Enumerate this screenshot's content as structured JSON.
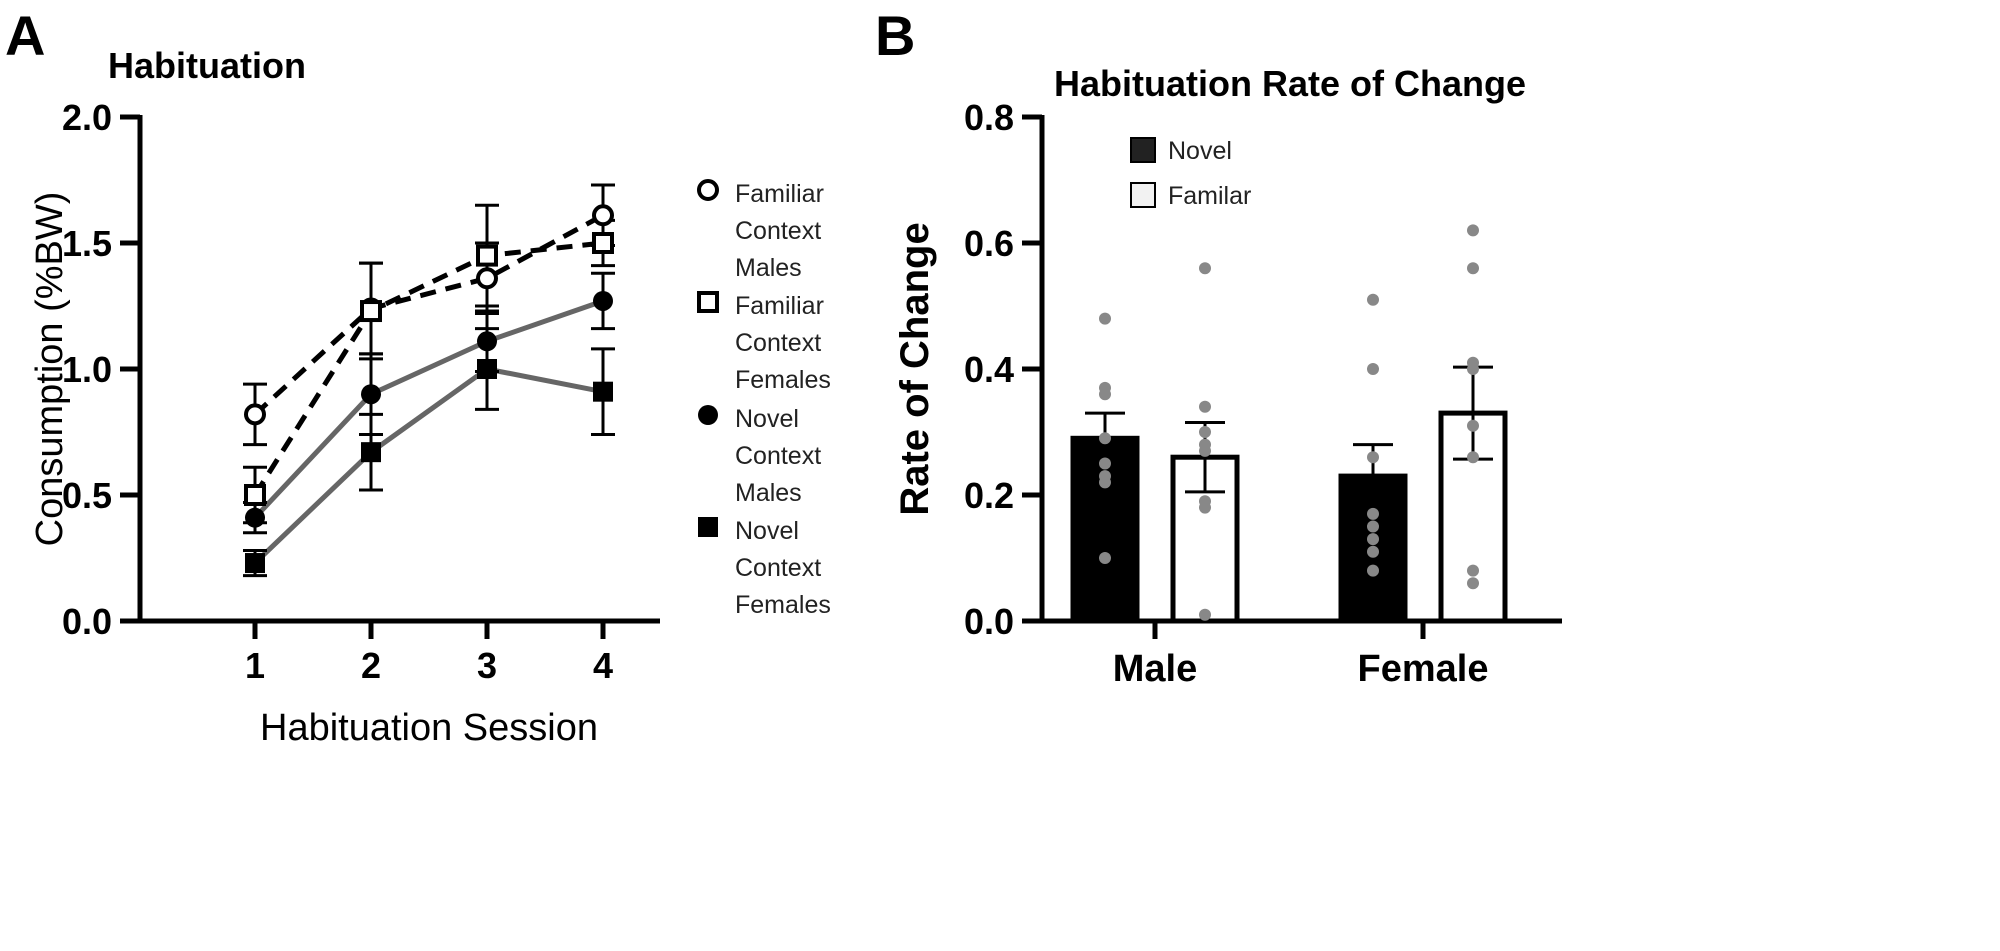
{
  "chart_data": [
    {
      "panel_label": "A",
      "type": "line",
      "title": "Habituation",
      "xlabel": "Habituation Session",
      "ylabel": "Consumption (%BW)",
      "x": [
        1,
        2,
        3,
        4
      ],
      "x_tick_labels": [
        "1",
        "2",
        "3",
        "4"
      ],
      "ylim": [
        0,
        2.0
      ],
      "y_ticks": [
        0,
        0.5,
        1.0,
        1.5,
        2.0
      ],
      "y_tick_labels": [
        "0.0",
        "0.5",
        "1.0",
        "1.5",
        "2.0"
      ],
      "grid": false,
      "legend_position": "right",
      "series": [
        {
          "name": "Familiar Context Males",
          "legend_lines": [
            "Familiar",
            "Context",
            "Males"
          ],
          "marker": "open-circle",
          "line": "dashed",
          "color": "#000000",
          "values": [
            0.82,
            1.24,
            1.36,
            1.61
          ],
          "sem": [
            0.12,
            0.18,
            0.14,
            0.12
          ]
        },
        {
          "name": "Familiar Context Females",
          "legend_lines": [
            "Familiar",
            "Context",
            "Females"
          ],
          "marker": "open-square",
          "line": "dashed",
          "color": "#000000",
          "values": [
            0.5,
            1.23,
            1.45,
            1.5
          ],
          "sem": [
            0.11,
            0.19,
            0.2,
            0.09
          ]
        },
        {
          "name": "Novel Context Males",
          "legend_lines": [
            "Novel",
            "Context",
            "Males"
          ],
          "marker": "filled-circle",
          "line": "solid",
          "color": "#666666",
          "values": [
            0.41,
            0.9,
            1.11,
            1.27
          ],
          "sem": [
            0.06,
            0.16,
            0.12,
            0.11
          ]
        },
        {
          "name": "Novel Context Females",
          "legend_lines": [
            "Novel",
            "Context",
            "Females"
          ],
          "marker": "filled-square",
          "line": "solid",
          "color": "#666666",
          "values": [
            0.23,
            0.67,
            1.0,
            0.91
          ],
          "sem": [
            0.05,
            0.15,
            0.16,
            0.17
          ]
        }
      ]
    },
    {
      "panel_label": "B",
      "type": "bar",
      "title": "Habituation Rate of Change",
      "xlabel": "",
      "ylabel": "Rate of Change",
      "categories": [
        "Male",
        "Female"
      ],
      "ylim": [
        0,
        0.8
      ],
      "y_ticks": [
        0,
        0.2,
        0.4,
        0.6,
        0.8
      ],
      "y_tick_labels": [
        "0.0",
        "0.2",
        "0.4",
        "0.6",
        "0.8"
      ],
      "grid": false,
      "legend_position": "top-left",
      "series": [
        {
          "name": "Novel",
          "fill": "#000000",
          "values": [
            0.29,
            0.23
          ],
          "sem": [
            0.04,
            0.05
          ],
          "points": [
            [
              0.48,
              0.37,
              0.36,
              0.29,
              0.25,
              0.23,
              0.22,
              0.1
            ],
            [
              0.51,
              0.4,
              0.26,
              0.17,
              0.15,
              0.13,
              0.11,
              0.08
            ]
          ]
        },
        {
          "name": "Familar",
          "fill": "#ffffff",
          "values": [
            0.26,
            0.33
          ],
          "sem": [
            0.055,
            0.073
          ],
          "points": [
            [
              0.56,
              0.34,
              0.3,
              0.28,
              0.27,
              0.19,
              0.18,
              0.01
            ],
            [
              0.62,
              0.56,
              0.41,
              0.4,
              0.31,
              0.26,
              0.08,
              0.06
            ]
          ]
        }
      ],
      "point_color": "#888888"
    }
  ]
}
